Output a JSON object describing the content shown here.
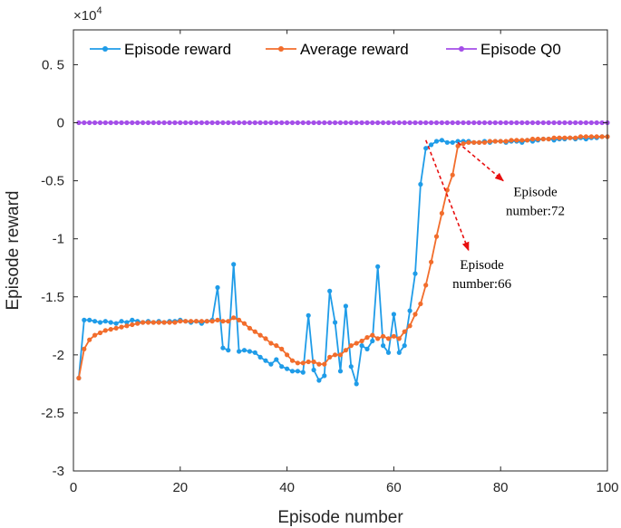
{
  "chart_data": {
    "type": "line",
    "xlabel": "Episode number",
    "ylabel": "Episode reward",
    "xlim": [
      0,
      100
    ],
    "ylim": [
      -3,
      0.8
    ],
    "y_exponent_label": "×10",
    "y_exponent_power": "4",
    "xticks": [
      0,
      20,
      40,
      60,
      80,
      100
    ],
    "xtick_labels": [
      "0",
      "20",
      "40",
      "60",
      "80",
      "100"
    ],
    "yticks": [
      0.5,
      0,
      -0.5,
      -1,
      -1.5,
      -2,
      -2.5,
      -3
    ],
    "ytick_labels": [
      "0. 5",
      "0",
      "-0.5",
      "-1",
      "-1.5",
      "-2",
      "-2.5",
      "-3"
    ],
    "legend_position": "top",
    "series": [
      {
        "name": "Episode reward",
        "color": "#1f9ce8",
        "x": [
          1,
          2,
          3,
          4,
          5,
          6,
          7,
          8,
          9,
          10,
          11,
          12,
          13,
          14,
          15,
          16,
          17,
          18,
          19,
          20,
          21,
          22,
          23,
          24,
          25,
          26,
          27,
          28,
          29,
          30,
          31,
          32,
          33,
          34,
          35,
          36,
          37,
          38,
          39,
          40,
          41,
          42,
          43,
          44,
          45,
          46,
          47,
          48,
          49,
          50,
          51,
          52,
          53,
          54,
          55,
          56,
          57,
          58,
          59,
          60,
          61,
          62,
          63,
          64,
          65,
          66,
          67,
          68,
          69,
          70,
          71,
          72,
          73,
          74,
          75,
          76,
          77,
          78,
          79,
          80,
          81,
          82,
          83,
          84,
          85,
          86,
          87,
          88,
          89,
          90,
          91,
          92,
          93,
          94,
          95,
          96,
          97,
          98,
          99,
          100
        ],
        "y": [
          -2.2,
          -1.7,
          -1.7,
          -1.71,
          -1.72,
          -1.71,
          -1.72,
          -1.73,
          -1.71,
          -1.72,
          -1.7,
          -1.71,
          -1.72,
          -1.71,
          -1.72,
          -1.71,
          -1.72,
          -1.71,
          -1.71,
          -1.7,
          -1.71,
          -1.72,
          -1.71,
          -1.73,
          -1.71,
          -1.7,
          -1.42,
          -1.94,
          -1.96,
          -1.22,
          -1.97,
          -1.96,
          -1.97,
          -1.98,
          -2.02,
          -2.05,
          -2.08,
          -2.04,
          -2.1,
          -2.12,
          -2.14,
          -2.14,
          -2.15,
          -1.66,
          -2.13,
          -2.22,
          -2.18,
          -1.45,
          -1.72,
          -2.14,
          -1.58,
          -2.1,
          -2.25,
          -1.92,
          -1.95,
          -1.88,
          -1.24,
          -1.92,
          -1.98,
          -1.65,
          -1.98,
          -1.92,
          -1.62,
          -1.3,
          -0.53,
          -0.22,
          -0.19,
          -0.16,
          -0.15,
          -0.17,
          -0.17,
          -0.16,
          -0.16,
          -0.16,
          -0.17,
          -0.17,
          -0.16,
          -0.17,
          -0.16,
          -0.16,
          -0.17,
          -0.16,
          -0.16,
          -0.17,
          -0.15,
          -0.16,
          -0.15,
          -0.14,
          -0.14,
          -0.15,
          -0.14,
          -0.14,
          -0.13,
          -0.14,
          -0.13,
          -0.14,
          -0.13,
          -0.13,
          -0.12,
          -0.12
        ]
      },
      {
        "name": "Average reward",
        "color": "#f26d2c",
        "x": [
          1,
          2,
          3,
          4,
          5,
          6,
          7,
          8,
          9,
          10,
          11,
          12,
          13,
          14,
          15,
          16,
          17,
          18,
          19,
          20,
          21,
          22,
          23,
          24,
          25,
          26,
          27,
          28,
          29,
          30,
          31,
          32,
          33,
          34,
          35,
          36,
          37,
          38,
          39,
          40,
          41,
          42,
          43,
          44,
          45,
          46,
          47,
          48,
          49,
          50,
          51,
          52,
          53,
          54,
          55,
          56,
          57,
          58,
          59,
          60,
          61,
          62,
          63,
          64,
          65,
          66,
          67,
          68,
          69,
          70,
          71,
          72,
          73,
          74,
          75,
          76,
          77,
          78,
          79,
          80,
          81,
          82,
          83,
          84,
          85,
          86,
          87,
          88,
          89,
          90,
          91,
          92,
          93,
          94,
          95,
          96,
          97,
          98,
          99,
          100
        ],
        "y": [
          -2.2,
          -1.95,
          -1.87,
          -1.83,
          -1.81,
          -1.79,
          -1.78,
          -1.77,
          -1.76,
          -1.75,
          -1.74,
          -1.73,
          -1.72,
          -1.72,
          -1.72,
          -1.72,
          -1.72,
          -1.72,
          -1.72,
          -1.71,
          -1.71,
          -1.71,
          -1.71,
          -1.71,
          -1.71,
          -1.71,
          -1.7,
          -1.71,
          -1.71,
          -1.68,
          -1.7,
          -1.73,
          -1.77,
          -1.8,
          -1.83,
          -1.86,
          -1.9,
          -1.92,
          -1.95,
          -2.0,
          -2.05,
          -2.07,
          -2.07,
          -2.06,
          -2.06,
          -2.08,
          -2.08,
          -2.02,
          -2.0,
          -2.0,
          -1.96,
          -1.92,
          -1.9,
          -1.88,
          -1.85,
          -1.83,
          -1.86,
          -1.84,
          -1.86,
          -1.84,
          -1.86,
          -1.8,
          -1.75,
          -1.65,
          -1.56,
          -1.4,
          -1.2,
          -0.98,
          -0.78,
          -0.58,
          -0.45,
          -0.2,
          -0.18,
          -0.17,
          -0.17,
          -0.17,
          -0.17,
          -0.16,
          -0.16,
          -0.16,
          -0.16,
          -0.15,
          -0.15,
          -0.15,
          -0.15,
          -0.14,
          -0.14,
          -0.14,
          -0.14,
          -0.13,
          -0.13,
          -0.13,
          -0.13,
          -0.13,
          -0.12,
          -0.12,
          -0.12,
          -0.12,
          -0.12,
          -0.12
        ]
      },
      {
        "name": "Episode Q0",
        "color": "#a44ee8",
        "x": [
          1,
          2,
          3,
          4,
          5,
          6,
          7,
          8,
          9,
          10,
          11,
          12,
          13,
          14,
          15,
          16,
          17,
          18,
          19,
          20,
          21,
          22,
          23,
          24,
          25,
          26,
          27,
          28,
          29,
          30,
          31,
          32,
          33,
          34,
          35,
          36,
          37,
          38,
          39,
          40,
          41,
          42,
          43,
          44,
          45,
          46,
          47,
          48,
          49,
          50,
          51,
          52,
          53,
          54,
          55,
          56,
          57,
          58,
          59,
          60,
          61,
          62,
          63,
          64,
          65,
          66,
          67,
          68,
          69,
          70,
          71,
          72,
          73,
          74,
          75,
          76,
          77,
          78,
          79,
          80,
          81,
          82,
          83,
          84,
          85,
          86,
          87,
          88,
          89,
          90,
          91,
          92,
          93,
          94,
          95,
          96,
          97,
          98,
          99,
          100
        ],
        "y": [
          0,
          0,
          0,
          0,
          0,
          0,
          0,
          0,
          0,
          0,
          0,
          0,
          0,
          0,
          0,
          0,
          0,
          0,
          0,
          0,
          0,
          0,
          0,
          0,
          0,
          0,
          0,
          0,
          0,
          0,
          0,
          0,
          0,
          0,
          0,
          0,
          0,
          0,
          0,
          0,
          0,
          0,
          0,
          0,
          0,
          0,
          0,
          0,
          0,
          0,
          0,
          0,
          0,
          0,
          0,
          0,
          0,
          0,
          0,
          0,
          0,
          0,
          0,
          0,
          0,
          0,
          0,
          0,
          0,
          0,
          0,
          0,
          0,
          0,
          0,
          0,
          0,
          0,
          0,
          0,
          0,
          0,
          0,
          0,
          0,
          0,
          0,
          0,
          0,
          0,
          0,
          0,
          0,
          0,
          0,
          0,
          0,
          0,
          0,
          0
        ]
      }
    ],
    "annotations": [
      {
        "line1": "Episode",
        "line2": "number:72",
        "target_x": 72,
        "target_y": -0.17,
        "arrow_end_x": 80.5,
        "arrow_end_y": -0.5,
        "text_x": 86.5,
        "text_y": -0.63
      },
      {
        "line1": "Episode",
        "line2": "number:66",
        "target_x": 66,
        "target_y": -0.15,
        "arrow_end_x": 74,
        "arrow_end_y": -1.1,
        "text_x": 76.5,
        "text_y": -1.26
      }
    ],
    "annotation_color": "#e81010"
  }
}
